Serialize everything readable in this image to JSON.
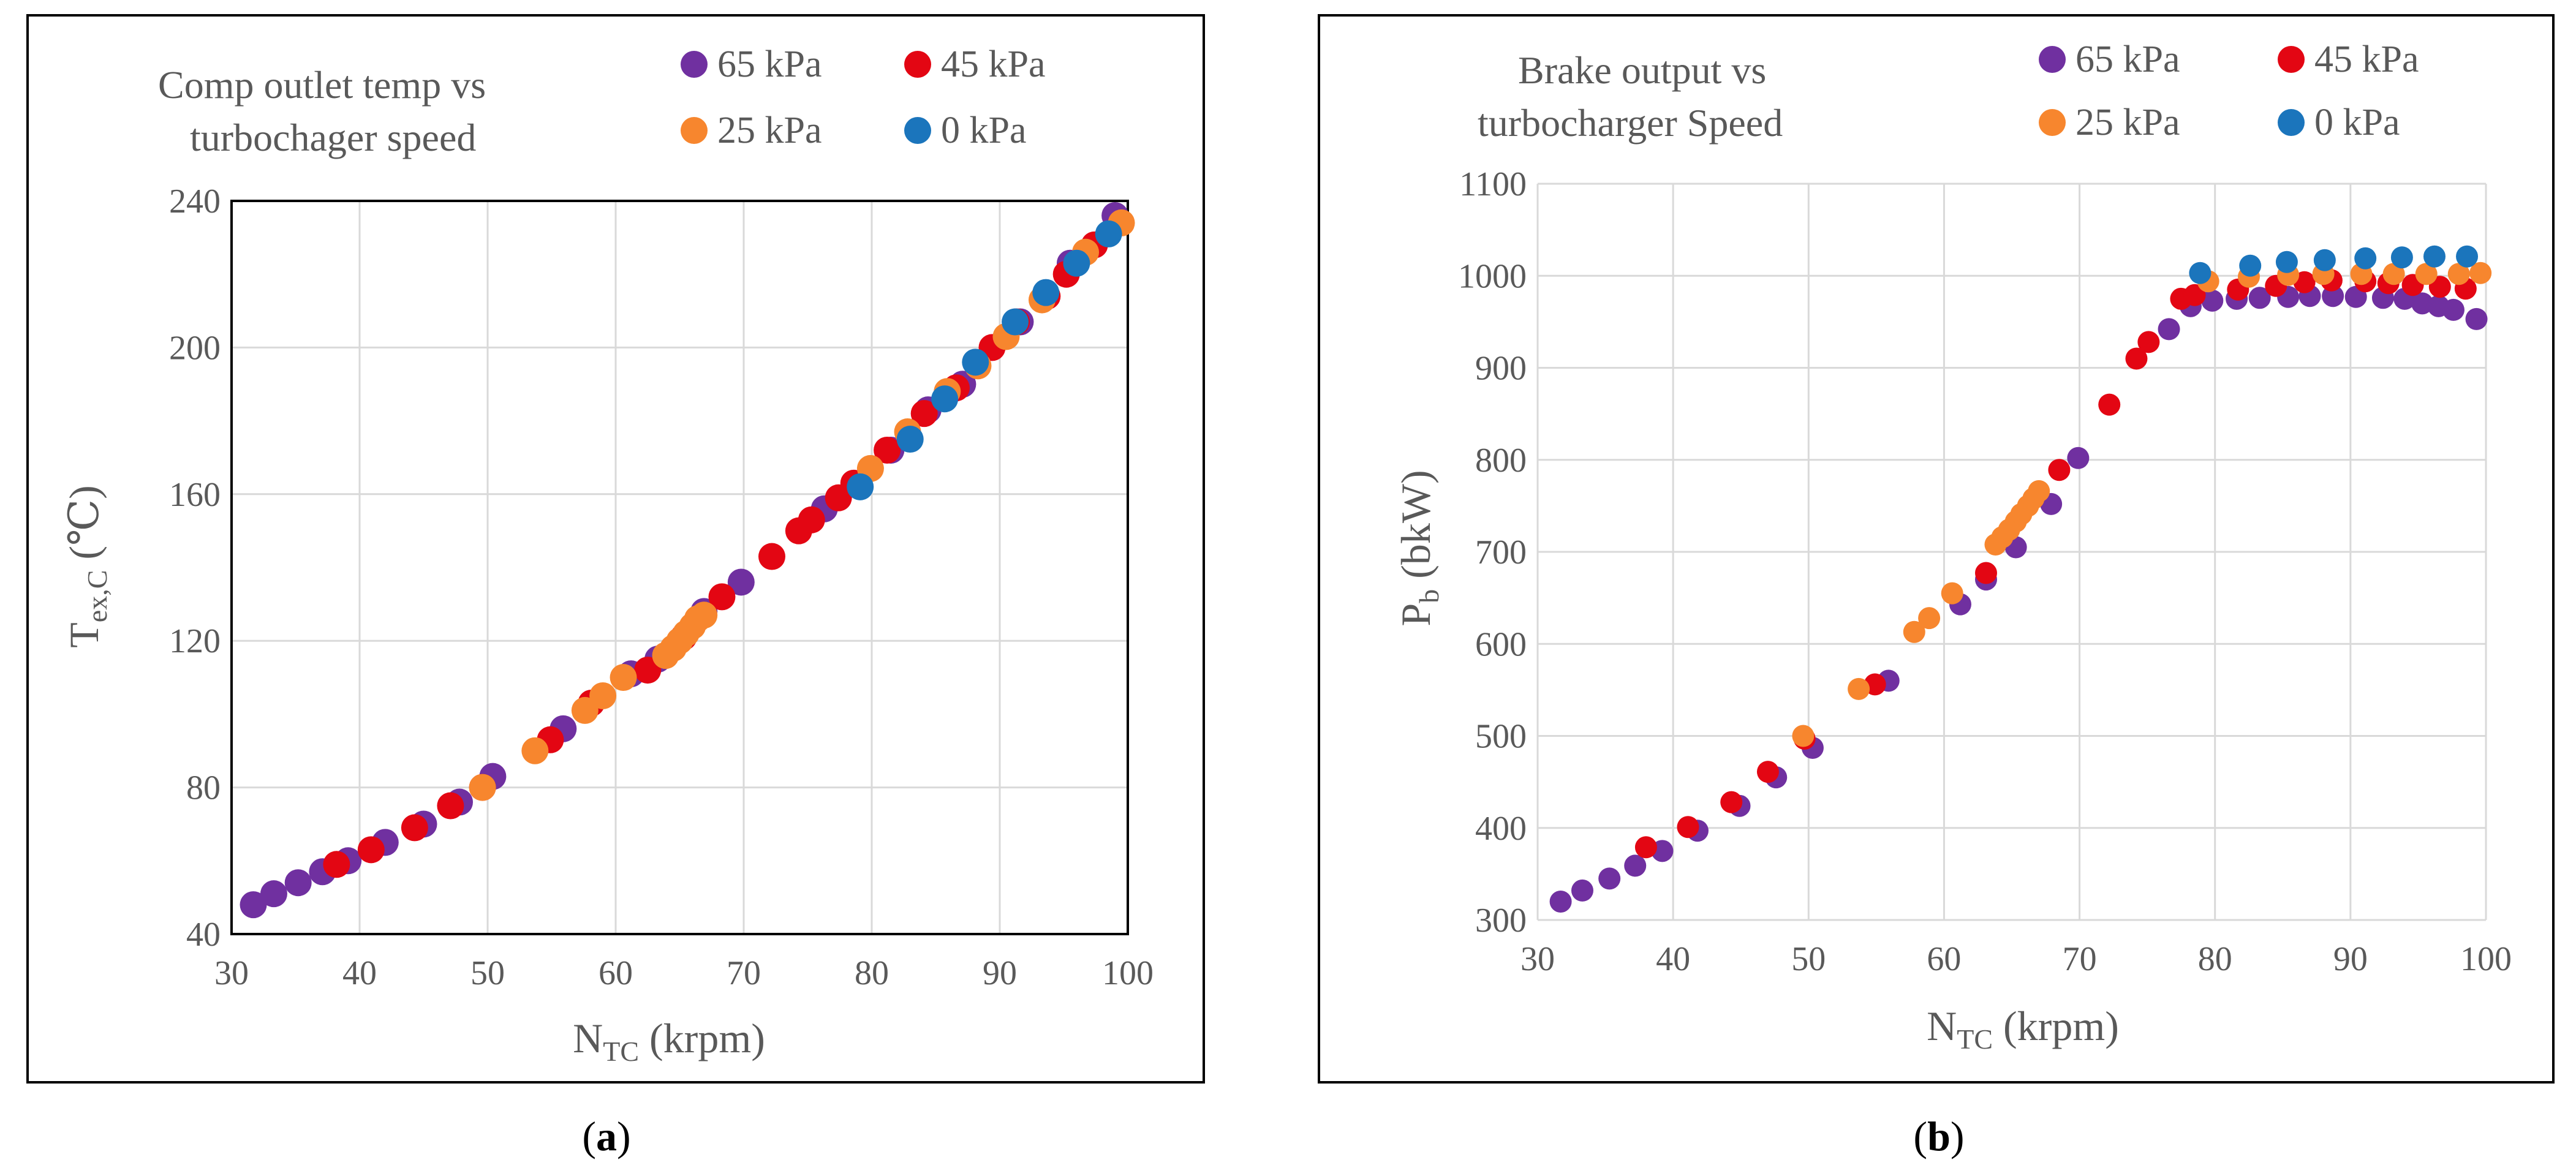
{
  "series_colors": {
    "65 kPa": "#7030a0",
    "45 kPa": "#e30613",
    "25 kPa": "#f7862e",
    "0 kPa": "#1b75bc"
  },
  "panel_a": {
    "label_open": "(",
    "label_letter": "a",
    "label_close": ")",
    "chart_title_line1": "Comp outlet temp vs",
    "chart_title_line2": "turbochager speed",
    "legend": [
      "65 kPa",
      "45 kPa",
      "25 kPa",
      "0 kPa"
    ],
    "x_tick_labels": [
      "30",
      "40",
      "50",
      "60",
      "70",
      "80",
      "90",
      "100"
    ],
    "y_tick_labels": [
      "40",
      "80",
      "120",
      "160",
      "200",
      "240"
    ],
    "x_axis_label": {
      "main": "N",
      "sub": "TC",
      "rest": " (krpm)"
    },
    "y_axis_label": {
      "main": "T",
      "sub": "ex,C",
      "rest": " (℃)"
    }
  },
  "panel_b": {
    "label_open": "(",
    "label_letter": "b",
    "label_close": ")",
    "chart_title_line1": "Brake output vs",
    "chart_title_line2": "turbocharger Speed",
    "legend": [
      "65 kPa",
      "45 kPa",
      "25 kPa",
      "0 kPa"
    ],
    "x_tick_labels": [
      "30",
      "40",
      "50",
      "60",
      "70",
      "80",
      "90",
      "100"
    ],
    "y_tick_labels": [
      "300",
      "400",
      "500",
      "600",
      "700",
      "800",
      "900",
      "1000",
      "1100"
    ],
    "x_axis_label": {
      "main": "N",
      "sub": "TC",
      "rest": " (krpm)"
    },
    "y_axis_label": {
      "main": "P",
      "sub": "b",
      "rest": " (bkW)"
    }
  },
  "chart_data": [
    {
      "type": "scatter",
      "title": "Comp outlet temp vs turbochager speed",
      "xlabel": "NTC (krpm)",
      "ylabel": "Tex,C (℃)",
      "xlim": [
        30,
        100
      ],
      "ylim": [
        40,
        240
      ],
      "x_ticks": [
        30,
        40,
        50,
        60,
        70,
        80,
        90,
        100
      ],
      "y_ticks": [
        40,
        80,
        120,
        160,
        200,
        240
      ],
      "grid": true,
      "legend_position": "top",
      "series": [
        {
          "name": "65 kPa",
          "points": [
            [
              31.7,
              48
            ],
            [
              33.3,
              51
            ],
            [
              35.2,
              54
            ],
            [
              37.1,
              57
            ],
            [
              39.1,
              60
            ],
            [
              42.0,
              65
            ],
            [
              45.0,
              70
            ],
            [
              47.8,
              76
            ],
            [
              50.4,
              83
            ],
            [
              55.9,
              96
            ],
            [
              61.2,
              111
            ],
            [
              63.3,
              115
            ],
            [
              66.9,
              128
            ],
            [
              69.8,
              136
            ],
            [
              76.3,
              156
            ],
            [
              81.5,
              172
            ],
            [
              84.4,
              183
            ],
            [
              87.1,
              190
            ],
            [
              91.6,
              207
            ],
            [
              95.5,
              223
            ],
            [
              99.0,
              236
            ]
          ]
        },
        {
          "name": "45 kPa",
          "points": [
            [
              38.2,
              59
            ],
            [
              40.9,
              63
            ],
            [
              44.3,
              69
            ],
            [
              47.1,
              75
            ],
            [
              49.6,
              80
            ],
            [
              54.9,
              93
            ],
            [
              58.1,
              103
            ],
            [
              62.5,
              112
            ],
            [
              65.3,
              121
            ],
            [
              68.3,
              132
            ],
            [
              72.2,
              143
            ],
            [
              74.3,
              150
            ],
            [
              75.3,
              153
            ],
            [
              77.4,
              159
            ],
            [
              78.6,
              163
            ],
            [
              81.2,
              172
            ],
            [
              84.1,
              182
            ],
            [
              86.6,
              189
            ],
            [
              89.4,
              200
            ],
            [
              91.3,
              207
            ],
            [
              93.7,
              214
            ],
            [
              95.2,
              220
            ],
            [
              97.4,
              228
            ]
          ]
        },
        {
          "name": "25 kPa",
          "points": [
            [
              49.6,
              80
            ],
            [
              53.7,
              90
            ],
            [
              57.6,
              101
            ],
            [
              59.0,
              105
            ],
            [
              60.6,
              110
            ],
            [
              63.9,
              116
            ],
            [
              64.5,
              118
            ],
            [
              65.0,
              120
            ],
            [
              65.5,
              122
            ],
            [
              66.0,
              124
            ],
            [
              66.4,
              126
            ],
            [
              66.9,
              127
            ],
            [
              79.9,
              167
            ],
            [
              82.8,
              177
            ],
            [
              85.9,
              188
            ],
            [
              88.3,
              195
            ],
            [
              90.5,
              203
            ],
            [
              93.3,
              213
            ],
            [
              96.7,
              226
            ],
            [
              99.5,
              234
            ]
          ]
        },
        {
          "name": "0 kPa",
          "points": [
            [
              79.1,
              162
            ],
            [
              83.0,
              175
            ],
            [
              85.7,
              186
            ],
            [
              88.1,
              196
            ],
            [
              91.2,
              207
            ],
            [
              93.6,
              215
            ],
            [
              96.0,
              223
            ],
            [
              98.5,
              231
            ]
          ]
        }
      ]
    },
    {
      "type": "scatter",
      "title": "Brake output vs turbocharger Speed",
      "xlabel": "NTC (krpm)",
      "ylabel": "Pb (bkW)",
      "xlim": [
        30,
        100
      ],
      "ylim": [
        300,
        1100
      ],
      "x_ticks": [
        30,
        40,
        50,
        60,
        70,
        80,
        90,
        100
      ],
      "y_ticks": [
        300,
        400,
        500,
        600,
        700,
        800,
        900,
        1000,
        1100
      ],
      "grid": true,
      "legend_position": "top",
      "series": [
        {
          "name": "65 kPa",
          "points": [
            [
              31.7,
              320
            ],
            [
              33.3,
              332
            ],
            [
              35.3,
              345
            ],
            [
              37.2,
              359
            ],
            [
              39.2,
              375
            ],
            [
              41.8,
              397
            ],
            [
              44.9,
              424
            ],
            [
              47.6,
              455
            ],
            [
              50.3,
              487
            ],
            [
              55.9,
              560
            ],
            [
              61.2,
              643
            ],
            [
              63.1,
              670
            ],
            [
              65.3,
              705
            ],
            [
              67.9,
              752
            ],
            [
              69.9,
              802
            ],
            [
              76.6,
              942
            ],
            [
              78.2,
              967
            ],
            [
              79.8,
              973
            ],
            [
              81.6,
              975
            ],
            [
              83.3,
              976
            ],
            [
              85.4,
              977
            ],
            [
              87.0,
              978
            ],
            [
              88.7,
              978
            ],
            [
              90.4,
              977
            ],
            [
              92.4,
              976
            ],
            [
              94.0,
              975
            ],
            [
              95.3,
              970
            ],
            [
              96.5,
              967
            ],
            [
              97.6,
              963
            ],
            [
              99.3,
              953
            ]
          ]
        },
        {
          "name": "45 kPa",
          "points": [
            [
              38.0,
              379
            ],
            [
              41.1,
              401
            ],
            [
              44.3,
              428
            ],
            [
              47.0,
              461
            ],
            [
              49.7,
              497
            ],
            [
              54.9,
              556
            ],
            [
              63.1,
              677
            ],
            [
              68.5,
              789
            ],
            [
              72.2,
              860
            ],
            [
              74.2,
              910
            ],
            [
              75.1,
              928
            ],
            [
              77.5,
              975
            ],
            [
              78.5,
              979
            ],
            [
              81.7,
              985
            ],
            [
              84.5,
              989
            ],
            [
              86.6,
              993
            ],
            [
              88.6,
              995
            ],
            [
              91.1,
              994
            ],
            [
              92.8,
              992
            ],
            [
              94.6,
              990
            ],
            [
              96.6,
              988
            ],
            [
              98.5,
              986
            ]
          ]
        },
        {
          "name": "25 kPa",
          "points": [
            [
              49.6,
              500
            ],
            [
              53.7,
              551
            ],
            [
              57.8,
              613
            ],
            [
              58.9,
              628
            ],
            [
              60.6,
              655
            ],
            [
              63.8,
              708
            ],
            [
              64.3,
              716
            ],
            [
              64.8,
              724
            ],
            [
              65.3,
              733
            ],
            [
              65.7,
              741
            ],
            [
              66.2,
              750
            ],
            [
              66.6,
              758
            ],
            [
              67.0,
              766
            ],
            [
              79.5,
              994
            ],
            [
              82.5,
              999
            ],
            [
              85.4,
              1001
            ],
            [
              88.0,
              1002
            ],
            [
              90.8,
              1002
            ],
            [
              93.2,
              1002
            ],
            [
              95.6,
              1002
            ],
            [
              98.0,
              1002
            ],
            [
              99.6,
              1003
            ]
          ]
        },
        {
          "name": "0 kPa",
          "points": [
            [
              78.9,
              1003
            ],
            [
              82.6,
              1011
            ],
            [
              85.3,
              1015
            ],
            [
              88.1,
              1017
            ],
            [
              91.1,
              1019
            ],
            [
              93.8,
              1020
            ],
            [
              96.2,
              1021
            ],
            [
              98.6,
              1021
            ]
          ]
        }
      ]
    }
  ]
}
